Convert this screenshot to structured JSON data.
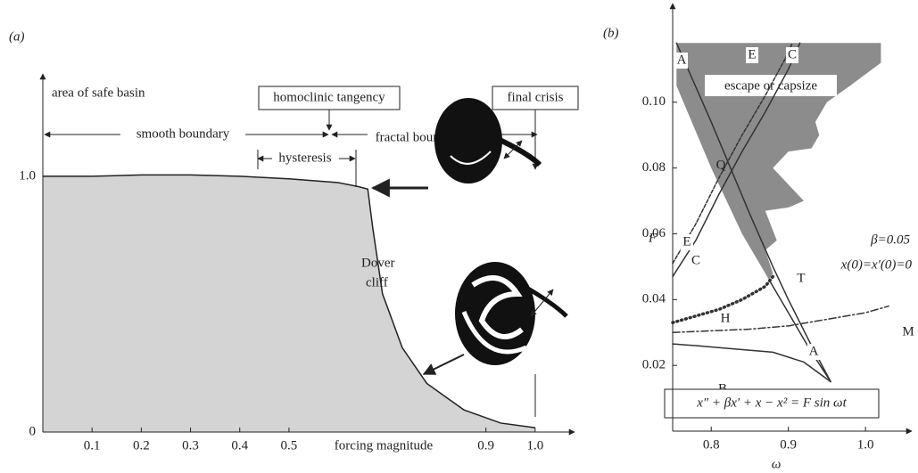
{
  "chart_data": [
    {
      "type": "area",
      "title": "(a)",
      "y_label": "area of safe basin",
      "x_label": "forcing magnitude",
      "color": "#d4d4d4",
      "x": [
        0,
        0.1,
        0.2,
        0.3,
        0.4,
        0.5,
        0.6,
        0.64,
        0.66,
        0.67,
        0.69,
        0.73,
        0.78,
        0.855,
        0.93,
        1.0
      ],
      "values": [
        1.0,
        1.0,
        1.005,
        1.005,
        1.0,
        0.99,
        0.975,
        0.96,
        0.95,
        0.8,
        0.54,
        0.33,
        0.19,
        0.087,
        0.035,
        0.017
      ],
      "xlim": [
        0,
        1.08
      ],
      "ylim": [
        0,
        1.4
      ],
      "xticks": [
        0.1,
        0.2,
        0.3,
        0.4,
        0.5,
        0.9,
        {
          "value": 1,
          "label": "1.0"
        }
      ],
      "yticks": [
        0,
        {
          "value": 1,
          "label": "1.0"
        }
      ],
      "annotations": {
        "smooth": "smooth boundary",
        "hysteresis": "hysteresis",
        "fractal": "fractal boundary",
        "tangency": "homoclinic tangency",
        "crisis": "final crisis",
        "dover1": "Dover",
        "dover2": "cliff"
      }
    },
    {
      "type": "line",
      "title": "(b)",
      "x_label": "ω",
      "y_label": "F",
      "xlim": [
        0.75,
        1.06
      ],
      "ylim": [
        0,
        0.13
      ],
      "xticks": [
        0.8,
        0.9,
        {
          "value": 1,
          "label": "1.0"
        }
      ],
      "yticks": [
        0.02,
        0.04,
        0.06,
        0.08,
        {
          "value": 0.1,
          "label": "0.10"
        }
      ],
      "regions": [
        {
          "name": "escape or capsize",
          "color": "#8c8c8c",
          "x": [
            0.755,
            1.02,
            1.02,
            0.98,
            0.95,
            0.935,
            0.94,
            0.93,
            0.9,
            0.88,
            0.9,
            0.92,
            0.9,
            0.87,
            0.885,
            0.87,
            0.88,
            0.875,
            0.84,
            0.8,
            0.755
          ],
          "values": [
            0.118,
            0.118,
            0.112,
            0.105,
            0.1,
            0.094,
            0.09,
            0.086,
            0.085,
            0.08,
            0.075,
            0.07,
            0.068,
            0.067,
            0.058,
            0.055,
            0.048,
            0.046,
            0.06,
            0.08,
            0.105
          ]
        }
      ],
      "series": [
        {
          "name": "A",
          "color": "#333333",
          "style": "solid",
          "x": [
            0.755,
            0.8,
            0.85,
            0.88,
            0.9,
            0.93,
            0.955,
            0.93,
            0.91,
            0.89,
            0.875
          ],
          "values": [
            0.118,
            0.094,
            0.066,
            0.05,
            0.04,
            0.026,
            0.015,
            0.024,
            0.032,
            0.04,
            0.046
          ]
        },
        {
          "name": "B",
          "color": "#333333",
          "style": "solid",
          "x": [
            0.955,
            0.92,
            0.88,
            0.83,
            0.78,
            0.75
          ],
          "values": [
            0.015,
            0.021,
            0.024,
            0.025,
            0.026,
            0.0265
          ]
        },
        {
          "name": "C",
          "color": "#333333",
          "style": "solid",
          "x": [
            0.75,
            0.78,
            0.81,
            0.84,
            0.87,
            0.9,
            0.915
          ],
          "values": [
            0.047,
            0.058,
            0.072,
            0.085,
            0.097,
            0.11,
            0.118
          ]
        },
        {
          "name": "E",
          "color": "#333333",
          "style": "dashed",
          "x": [
            0.75,
            0.78,
            0.81,
            0.84,
            0.87,
            0.9,
            0.905
          ],
          "values": [
            0.051,
            0.063,
            0.077,
            0.09,
            0.102,
            0.115,
            0.118
          ]
        },
        {
          "name": "H",
          "color": "#333333",
          "style": "dotted",
          "x": [
            0.75,
            0.78,
            0.81,
            0.84,
            0.87,
            0.88
          ],
          "values": [
            0.033,
            0.035,
            0.037,
            0.04,
            0.044,
            0.047
          ]
        },
        {
          "name": "M",
          "color": "#333333",
          "style": "dashdot",
          "x": [
            0.75,
            0.8,
            0.85,
            0.9,
            0.95,
            1.0,
            1.03
          ],
          "values": [
            0.03,
            0.0305,
            0.031,
            0.032,
            0.034,
            0.036,
            0.038
          ]
        }
      ],
      "annotations": {
        "q": "Q",
        "t": "T",
        "beta": "β=0.05",
        "init": "x(0)=x′(0)=0",
        "equation": "x″ + βx′ + x − x² = F sin ωt"
      }
    }
  ]
}
